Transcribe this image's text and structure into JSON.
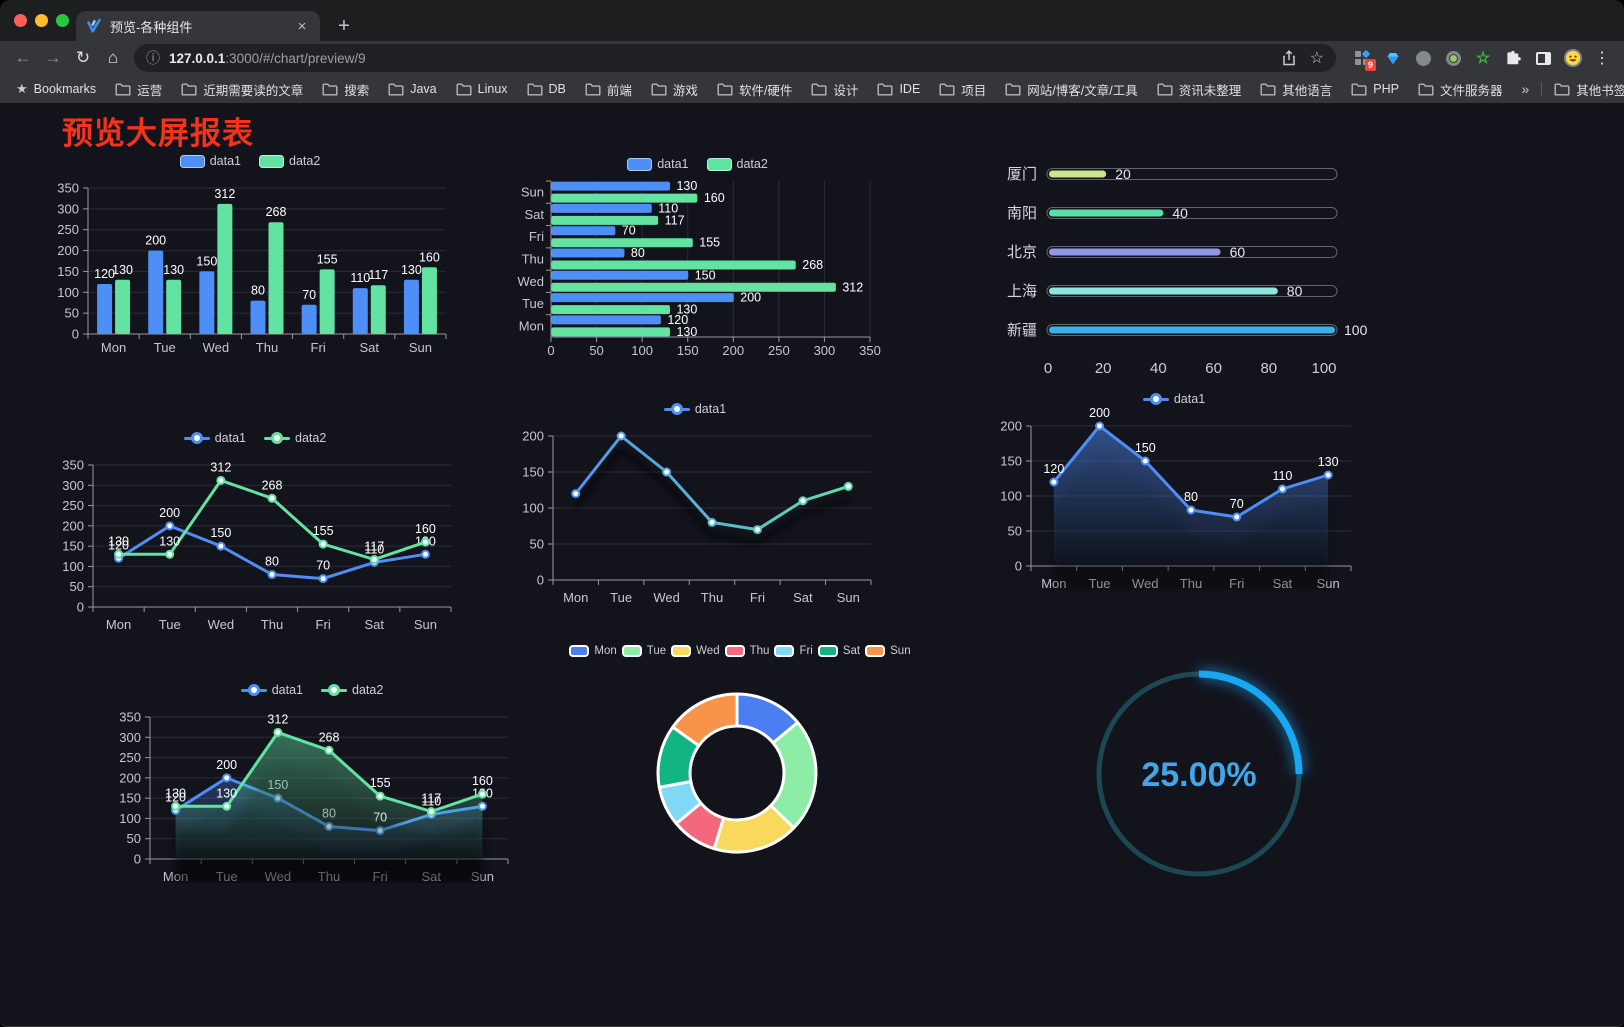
{
  "browser": {
    "tab_title": "预览-各种组件",
    "url_host": "127.0.0.1",
    "url_path": ":3000/#/chart/preview/9",
    "extension_badge": "9",
    "bookmarks_bar": {
      "star_label": "Bookmarks",
      "folders": [
        "运营",
        "近期需要读的文章",
        "搜索",
        "Java",
        "Linux",
        "DB",
        "前端",
        "游戏",
        "软件/硬件",
        "设计",
        "IDE",
        "项目",
        "网站/博客/文章/工具",
        "资讯未整理",
        "其他语言",
        "PHP",
        "文件服务器"
      ],
      "overflow": "»",
      "other_bookmarks": "其他书签"
    }
  },
  "icons": {
    "back": "←",
    "forward": "→",
    "reload": "↻",
    "home": "⌂",
    "info": "ⓘ",
    "star": "☆",
    "close": "×",
    "new_tab": "+",
    "menu": "⋮",
    "bookmarks_star": "★",
    "ext_star": "☆"
  },
  "page": {
    "title": "预览大屏报表"
  },
  "chart_data": [
    {
      "id": "grouped-bar",
      "type": "bar",
      "categories": [
        "Mon",
        "Tue",
        "Wed",
        "Thu",
        "Fri",
        "Sat",
        "Sun"
      ],
      "series": [
        {
          "name": "data1",
          "color": "#4d8ef7",
          "values": [
            120,
            200,
            150,
            80,
            70,
            110,
            130
          ]
        },
        {
          "name": "data2",
          "color": "#62e3a2",
          "values": [
            130,
            130,
            312,
            268,
            155,
            117,
            160
          ]
        }
      ],
      "ylim": [
        0,
        350
      ],
      "ytick_step": 50,
      "legend_position": "top",
      "grid": true
    },
    {
      "id": "horizontal-bar",
      "type": "bar-horizontal",
      "categories": [
        "Mon",
        "Tue",
        "Wed",
        "Thu",
        "Fri",
        "Sat",
        "Sun"
      ],
      "series": [
        {
          "name": "data1",
          "color": "#4d8ef7",
          "values": [
            120,
            200,
            150,
            80,
            70,
            110,
            130
          ]
        },
        {
          "name": "data2",
          "color": "#62e3a2",
          "values": [
            130,
            130,
            312,
            268,
            155,
            117,
            160
          ]
        }
      ],
      "xlim": [
        0,
        350
      ],
      "xtick_step": 50,
      "legend_position": "top",
      "grid": true
    },
    {
      "id": "progress-bars",
      "type": "progress",
      "max": 100,
      "ticks": [
        0,
        20,
        40,
        60,
        80,
        100
      ],
      "items": [
        {
          "label": "厦门",
          "value": 20,
          "color": "#c9e78f"
        },
        {
          "label": "南阳",
          "value": 40,
          "color": "#57dfa5"
        },
        {
          "label": "北京",
          "value": 60,
          "color": "#9198e5"
        },
        {
          "label": "上海",
          "value": 80,
          "color": "#8fe6e0"
        },
        {
          "label": "新疆",
          "value": 100,
          "color": "#38b2ea"
        }
      ]
    },
    {
      "id": "line-two-series",
      "type": "line",
      "categories": [
        "Mon",
        "Tue",
        "Wed",
        "Thu",
        "Fri",
        "Sat",
        "Sun"
      ],
      "series": [
        {
          "name": "data1",
          "color": "#4d8ef7",
          "values": [
            120,
            200,
            150,
            80,
            70,
            110,
            130
          ]
        },
        {
          "name": "data2",
          "color": "#62e3a2",
          "values": [
            130,
            130,
            312,
            268,
            155,
            117,
            160
          ]
        }
      ],
      "ylim": [
        0,
        350
      ],
      "ytick_step": 50,
      "point_labels": true,
      "legend_position": "top"
    },
    {
      "id": "gradient-line",
      "type": "line",
      "categories": [
        "Mon",
        "Tue",
        "Wed",
        "Thu",
        "Fri",
        "Sat",
        "Sun"
      ],
      "series": [
        {
          "name": "data1",
          "gradient": [
            "#4d8ef7",
            "#62e3a2"
          ],
          "shadow": true,
          "values": [
            120,
            200,
            150,
            80,
            70,
            110,
            130
          ]
        }
      ],
      "ylim": [
        0,
        200
      ],
      "ytick_step": 50,
      "point_labels": false,
      "legend_position": "top"
    },
    {
      "id": "area-line",
      "type": "line",
      "categories": [
        "Mon",
        "Tue",
        "Wed",
        "Thu",
        "Fri",
        "Sat",
        "Sun"
      ],
      "series": [
        {
          "name": "data1",
          "color": "#4d8ef7",
          "area": true,
          "values": [
            120,
            200,
            150,
            80,
            70,
            110,
            130
          ]
        }
      ],
      "ylim": [
        0,
        200
      ],
      "ytick_step": 50,
      "point_labels": true,
      "legend_position": "top"
    },
    {
      "id": "area-line-two-series",
      "type": "line",
      "categories": [
        "Mon",
        "Tue",
        "Wed",
        "Thu",
        "Fri",
        "Sat",
        "Sun"
      ],
      "series": [
        {
          "name": "data1",
          "color": "#4d8ef7",
          "area": true,
          "values": [
            120,
            200,
            150,
            80,
            70,
            110,
            130
          ]
        },
        {
          "name": "data2",
          "color": "#62e3a2",
          "area": true,
          "values": [
            130,
            130,
            312,
            268,
            155,
            117,
            160
          ]
        }
      ],
      "ylim": [
        0,
        350
      ],
      "ytick_step": 50,
      "point_labels": true,
      "legend_position": "top"
    },
    {
      "id": "donut",
      "type": "donut",
      "legend_position": "top",
      "items": [
        {
          "label": "Mon",
          "value": 120,
          "color": "#4b7ef0"
        },
        {
          "label": "Tue",
          "value": 200,
          "color": "#8deca6"
        },
        {
          "label": "Wed",
          "value": 150,
          "color": "#f8d95e"
        },
        {
          "label": "Thu",
          "value": 80,
          "color": "#f4677d"
        },
        {
          "label": "Fri",
          "value": 70,
          "color": "#7fd8f5"
        },
        {
          "label": "Sat",
          "value": 110,
          "color": "#12b581"
        },
        {
          "label": "Sun",
          "value": 130,
          "color": "#f89449"
        }
      ]
    },
    {
      "id": "gauge",
      "type": "gauge",
      "value": 25,
      "label": "25.00%",
      "track_color": "#1c4853",
      "arc_color": "#18a7f2",
      "text_color": "#42a7e8"
    }
  ]
}
